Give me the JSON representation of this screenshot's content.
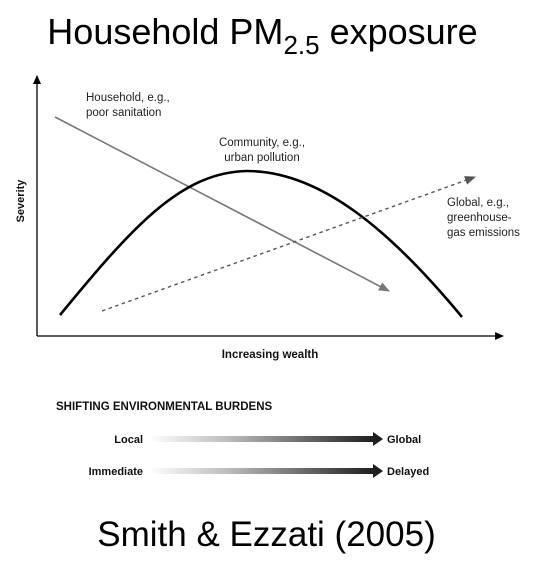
{
  "title": {
    "main": "Household PM",
    "subscript": "2.5",
    "suffix": " exposure"
  },
  "figure": {
    "y_axis_label": "Severity",
    "x_axis_label": "Increasing wealth",
    "curves": [
      {
        "name": "household",
        "label_line1": "Household, e.g.,",
        "label_line2": "poor sanitation",
        "trend": "decreasing",
        "style": "solid-gray-arrow"
      },
      {
        "name": "community",
        "label_line1": "Community, e.g.,",
        "label_line2": "urban pollution",
        "trend": "rise-then-fall",
        "style": "solid-black-curve"
      },
      {
        "name": "global",
        "label_line1": "Global, e.g.,",
        "label_line2": "greenhouse-",
        "label_line3": "gas emissions",
        "trend": "increasing",
        "style": "dashed-arrow"
      }
    ],
    "burdens": {
      "heading": "SHIFTING ENVIRONMENTAL BURDENS",
      "rows": [
        {
          "from": "Local",
          "to": "Global"
        },
        {
          "from": "Immediate",
          "to": "Delayed"
        }
      ]
    },
    "colors": {
      "household_line": "#777777",
      "community_curve": "#000000",
      "global_line": "#555555"
    }
  },
  "citation": "Smith & Ezzati (2005)"
}
